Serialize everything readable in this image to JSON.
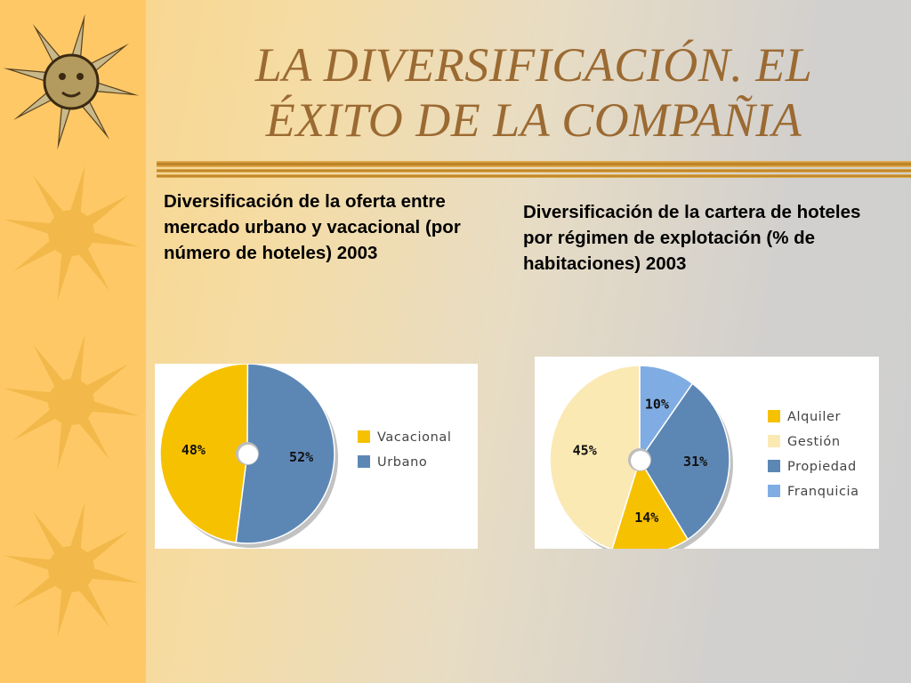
{
  "slide": {
    "title_line1": "LA DIVERSIFICACIÓN. EL",
    "title_line2": "ÉXITO DE LA COMPAÑIA",
    "colors": {
      "title": "#9b6a32",
      "sun_strip": "#ffc867",
      "sun": "#f2b94a",
      "rule": "#c8912c"
    },
    "decor_icons": [
      "sun-face-icon",
      "sun-icon",
      "sun-icon",
      "sun-icon"
    ]
  },
  "captions": {
    "left": "Diversificación de la oferta entre mercado urbano y vacacional (por número de hoteles) 2003",
    "right": "Diversificación de la cartera de hoteles por régimen de explotación (% de habitaciones) 2003"
  },
  "chart_data": [
    {
      "type": "pie",
      "title": "",
      "categories": [
        "Vacacional",
        "Urbano"
      ],
      "values": [
        48,
        52
      ],
      "labels": [
        "48%",
        "52%"
      ],
      "colors": [
        "#f6c100",
        "#5c87b5"
      ],
      "legend": "right"
    },
    {
      "type": "pie",
      "title": "",
      "categories": [
        "Alquiler",
        "Gestión",
        "Propiedad",
        "Franquicia"
      ],
      "values": [
        14,
        45,
        31,
        10
      ],
      "labels": [
        "14%",
        "45%",
        "31%",
        "10%"
      ],
      "colors": [
        "#f6c100",
        "#fbe9b4",
        "#5c87b5",
        "#7fade3"
      ],
      "legend": "right"
    }
  ]
}
